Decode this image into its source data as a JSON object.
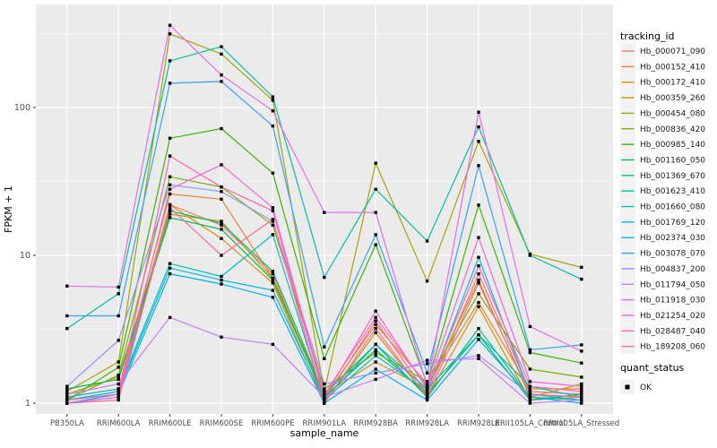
{
  "figure": {
    "background": "#ffffff",
    "panel_background": "#EBEBEB",
    "grid_color": "#FFFFFF",
    "tick_label_color": "#4D4D4D",
    "axis_title_color": "#000000",
    "legend_key_fill": "#F2F2F2",
    "point_color": "#000000"
  },
  "chart_data": {
    "type": "line",
    "title": "",
    "xlabel": "sample_name",
    "ylabel": "FPKM + 1",
    "y_scale": "log10",
    "y_ticks": [
      1,
      10,
      100
    ],
    "y_minor_ticks": [
      3.162,
      31.62,
      316.2
    ],
    "ylim": [
      0.93,
      500
    ],
    "grid": true,
    "legend_position": "right",
    "legend_title": "tracking_id",
    "legend2_title": "quant_status",
    "legend2_items": [
      {
        "label": "OK",
        "marker": "black-square"
      }
    ],
    "categories": [
      "PB350LA",
      "RRIM600LA",
      "RRIM600LE",
      "RRIM600SE",
      "RRIM600PE",
      "RRIM901LA",
      "RRIM928BA",
      "RRIM928LA",
      "RRIM928LE",
      "RRII105LA_Control",
      "RRII105LA_Stressed"
    ],
    "series": [
      {
        "name": "Hb_000071_090",
        "color": "#F8766D",
        "values": [
          1.05,
          1.2,
          22,
          16,
          7.5,
          1.05,
          3.6,
          1.15,
          7.5,
          1.2,
          1.15
        ]
      },
      {
        "name": "Hb_000152_410",
        "color": "#EA8331",
        "values": [
          1.1,
          1.25,
          26,
          24,
          7.0,
          1.1,
          3.4,
          1.35,
          4.8,
          1.25,
          1.25
        ]
      },
      {
        "name": "Hb_000172_410",
        "color": "#D89000",
        "values": [
          1.0,
          1.1,
          22,
          13,
          6.5,
          1.0,
          3.0,
          1.1,
          4.5,
          1.05,
          1.1
        ]
      },
      {
        "name": "Hb_000359_260",
        "color": "#C09B00",
        "values": [
          1.15,
          1.5,
          19,
          17,
          7.0,
          1.15,
          1.9,
          1.25,
          6.8,
          1.1,
          1.35
        ]
      },
      {
        "name": "Hb_000454_080",
        "color": "#A3A500",
        "values": [
          1.2,
          1.9,
          315,
          230,
          112,
          1.2,
          42,
          6.7,
          59,
          10.2,
          8.3
        ]
      },
      {
        "name": "Hb_000836_420",
        "color": "#7CAE00",
        "values": [
          1.05,
          1.55,
          34,
          29,
          16,
          1.25,
          2.2,
          1.4,
          5.5,
          1.7,
          1.5
        ]
      },
      {
        "name": "Hb_000985_140",
        "color": "#39B600",
        "values": [
          1.05,
          1.75,
          62,
          72,
          36,
          2.0,
          11.8,
          1.35,
          21.9,
          2.2,
          1.87
        ]
      },
      {
        "name": "Hb_001160_050",
        "color": "#00BB4E",
        "values": [
          1.25,
          1.45,
          18,
          15,
          6.8,
          1.1,
          2.3,
          1.15,
          2.9,
          1.05,
          1.15
        ]
      },
      {
        "name": "Hb_001369_670",
        "color": "#00BF7D",
        "values": [
          1.05,
          1.15,
          20,
          16.5,
          7.8,
          1.15,
          2.5,
          1.1,
          3.2,
          1.1,
          1.05
        ]
      },
      {
        "name": "Hb_001623_410",
        "color": "#00C1A3",
        "values": [
          3.2,
          5.5,
          207,
          258,
          118,
          7.1,
          28,
          12.5,
          74,
          10.0,
          6.9
        ]
      },
      {
        "name": "Hb_001660_080",
        "color": "#00BFC4",
        "values": [
          1.1,
          1.25,
          8.8,
          7.2,
          13.8,
          1.05,
          2.5,
          1.25,
          2.9,
          1.3,
          1.1
        ]
      },
      {
        "name": "Hb_001769_120",
        "color": "#00BAE0",
        "values": [
          1.05,
          1.2,
          8.2,
          6.8,
          5.8,
          1.05,
          2.1,
          1.2,
          9.7,
          1.15,
          1.05
        ]
      },
      {
        "name": "Hb_002374_030",
        "color": "#00B0F6",
        "values": [
          1.0,
          1.15,
          7.5,
          6.4,
          5.2,
          1.0,
          1.7,
          1.05,
          2.7,
          1.1,
          1.0
        ]
      },
      {
        "name": "Hb_003078_070",
        "color": "#35A2FF",
        "values": [
          3.9,
          3.9,
          146,
          150,
          75,
          2.4,
          13.8,
          1.6,
          40.5,
          2.3,
          2.48
        ]
      },
      {
        "name": "Hb_004837_200",
        "color": "#9590FF",
        "values": [
          1.3,
          2.66,
          30,
          27,
          17,
          1.35,
          1.6,
          1.85,
          2.1,
          1.15,
          1.1
        ]
      },
      {
        "name": "Hb_011794_050",
        "color": "#C77CFF",
        "values": [
          1.15,
          1.35,
          3.8,
          2.8,
          2.5,
          1.1,
          1.45,
          1.95,
          2.0,
          1.0,
          1.05
        ]
      },
      {
        "name": "Hb_011918_030",
        "color": "#E76BF3",
        "values": [
          6.2,
          6.1,
          360,
          166,
          95,
          19.5,
          19.5,
          1.3,
          93,
          3.3,
          2.25
        ]
      },
      {
        "name": "Hb_021254_020",
        "color": "#FA62DB",
        "values": [
          1.0,
          1.1,
          28,
          41,
          21,
          1.15,
          3.8,
          1.3,
          13.2,
          1.4,
          1.3
        ]
      },
      {
        "name": "Hb_028487_040",
        "color": "#FF62BC",
        "values": [
          1.05,
          1.15,
          47,
          29,
          20,
          1.1,
          4.2,
          1.25,
          8.5,
          1.3,
          1.2
        ]
      },
      {
        "name": "Hb_189208_060",
        "color": "#FF6A98",
        "values": [
          1.0,
          1.05,
          21,
          10,
          17.5,
          1.0,
          3.2,
          1.1,
          6.5,
          1.15,
          1.1
        ]
      }
    ]
  }
}
